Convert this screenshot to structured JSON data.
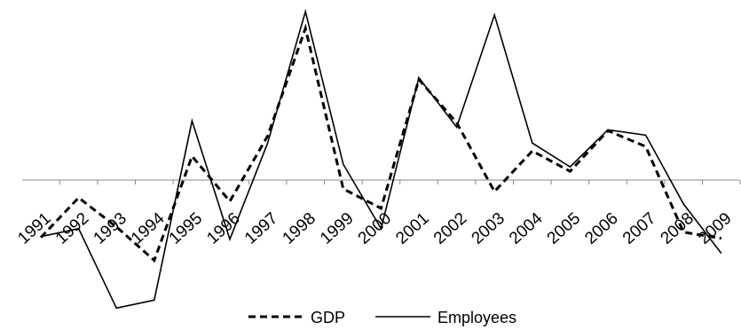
{
  "chart_data": {
    "type": "line",
    "title": "",
    "xlabel": "",
    "ylabel": "",
    "categories": [
      "1991",
      "1992",
      "1993",
      "1994",
      "1995",
      "1996",
      "1997",
      "1998",
      "1999",
      "2000",
      "2001",
      "2002",
      "2003",
      "2004",
      "2005",
      "2006",
      "2007",
      "2008",
      "2009"
    ],
    "ylim": [
      -1.45,
      1.92
    ],
    "series": [
      {
        "name": "GDP",
        "style": "dashed",
        "color": "#000000",
        "values": [
          -0.65,
          -0.2,
          -0.53,
          -0.91,
          0.27,
          -0.24,
          0.5,
          1.72,
          -0.1,
          -0.32,
          1.14,
          0.65,
          -0.13,
          0.33,
          0.1,
          0.56,
          0.38,
          -0.59,
          -0.66
        ]
      },
      {
        "name": "Employees",
        "style": "solid",
        "color": "#000000",
        "values": [
          -0.64,
          -0.55,
          -1.45,
          -1.36,
          0.67,
          -0.67,
          0.42,
          1.91,
          0.18,
          -0.55,
          1.16,
          0.6,
          1.87,
          0.42,
          0.15,
          0.57,
          0.51,
          -0.27,
          -0.83
        ]
      }
    ],
    "grid": false,
    "legend_position": "bottom"
  }
}
